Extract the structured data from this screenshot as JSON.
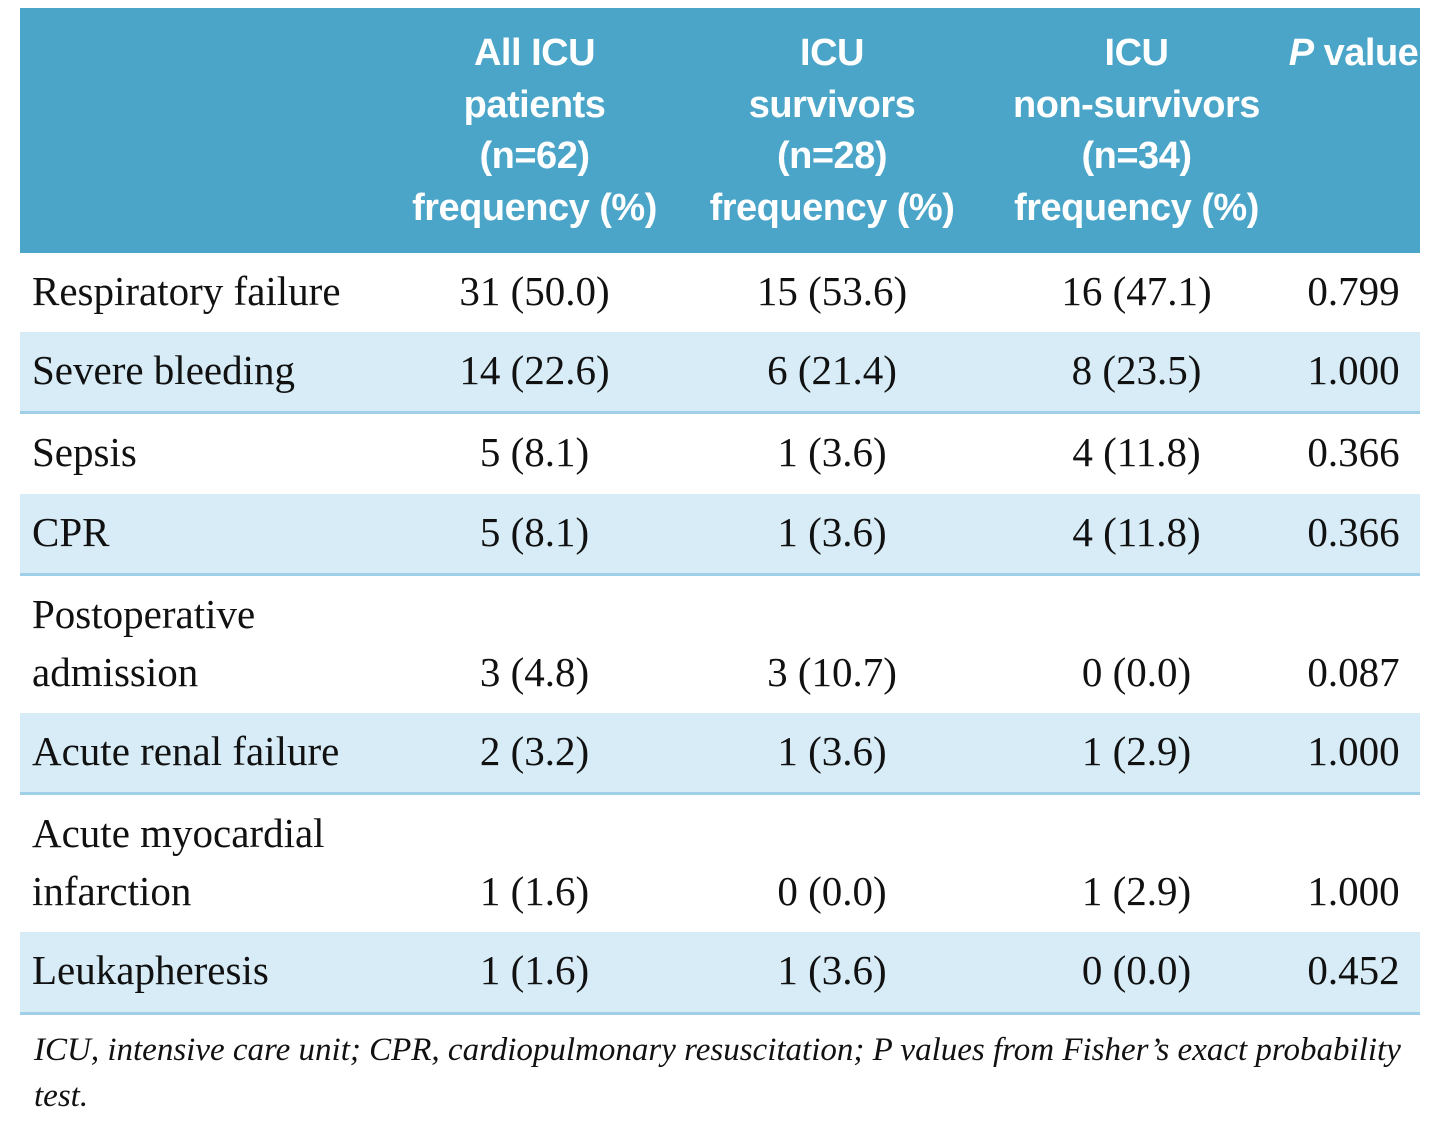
{
  "colors": {
    "header_bg": "#4aa5c9",
    "stripe_bg": "#d7ecf7",
    "row_line": "#9fd0e8",
    "text_color": "#111111"
  },
  "chart_data": {
    "type": "table",
    "columns": [
      "",
      "All ICU\npatients\n(n=62)\nfrequency (%)",
      "ICU\nsurvivors\n(n=28)\nfrequency (%)",
      "ICU\nnon-survivors\n(n=34)\nfrequency (%)",
      "P value"
    ],
    "p_header": {
      "italic_part": "P",
      "rest_part": " value"
    },
    "rows": [
      [
        "Respiratory failure",
        "31 (50.0)",
        "15 (53.6)",
        "16 (47.1)",
        "0.799"
      ],
      [
        "Severe bleeding",
        "14 (22.6)",
        "6 (21.4)",
        "8 (23.5)",
        "1.000"
      ],
      [
        "Sepsis",
        "5 (8.1)",
        "1 (3.6)",
        "4 (11.8)",
        "0.366"
      ],
      [
        "CPR",
        "5 (8.1)",
        "1 (3.6)",
        "4 (11.8)",
        "0.366"
      ],
      [
        "Postoperative\nadmission",
        "3 (4.8)",
        "3 (10.7)",
        "0 (0.0)",
        "0.087"
      ],
      [
        "Acute renal failure",
        "2 (3.2)",
        "1 (3.6)",
        "1 (2.9)",
        "1.000"
      ],
      [
        "Acute myocardial\ninfarction",
        "1 (1.6)",
        "0 (0.0)",
        "1 (2.9)",
        "1.000"
      ],
      [
        "Leukapheresis",
        "1 (1.6)",
        "1 (3.6)",
        "0 (0.0)",
        "0.452"
      ]
    ],
    "footnote": "ICU, intensive care unit; CPR, cardiopulmonary resuscitation; P values from Fisher’s exact probability test."
  }
}
